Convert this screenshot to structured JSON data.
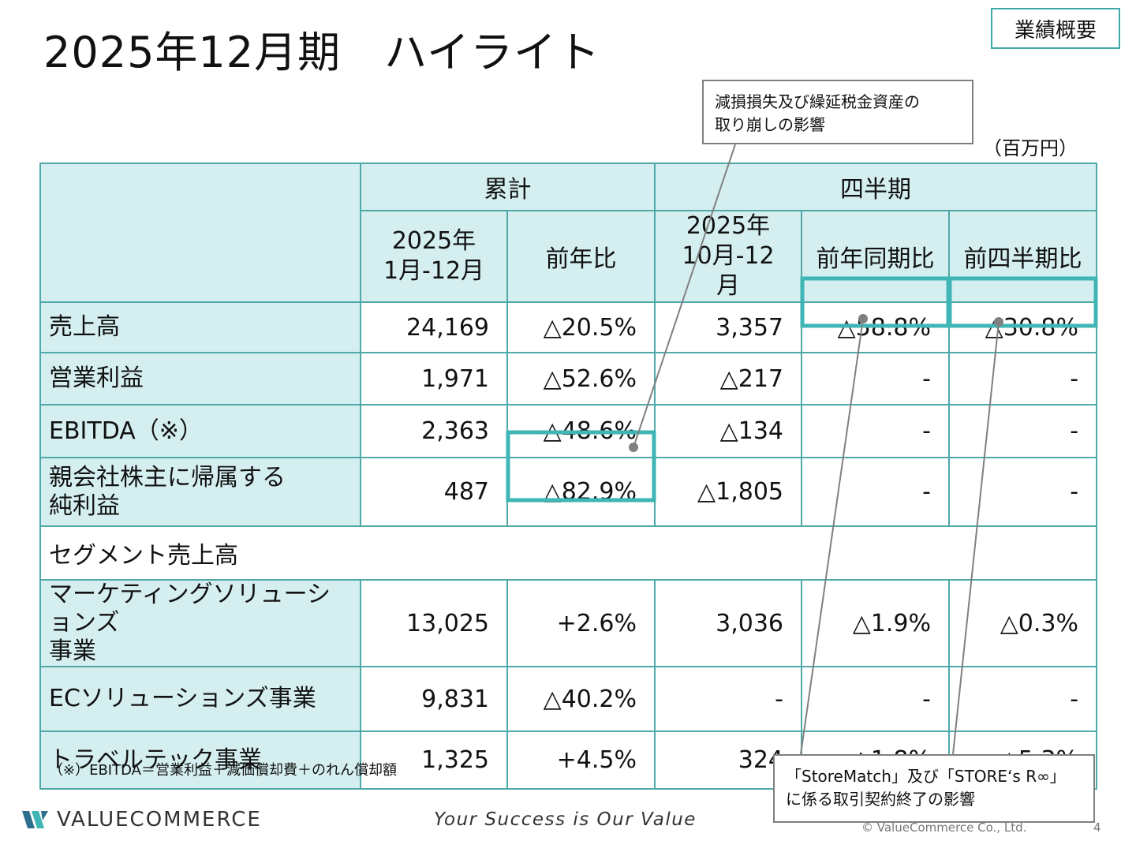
{
  "title": "2025年12月期　ハイライト",
  "badge": "業績概要",
  "unit": "（百万円）",
  "callout_impairment": [
    "減損損失及び繰延税金資産の",
    "取り崩しの影響"
  ],
  "callout_storematch": [
    "「StoreMatch」及び「STORE‘s R∞」",
    "に係る取引契約終了の影響"
  ],
  "table": {
    "group_cumulative": "累計",
    "group_quarter": "四半期",
    "col_cum_period": [
      "2025年",
      "1月-12月"
    ],
    "col_cum_yoy": "前年比",
    "col_q_period": [
      "2025年",
      "10月-12月"
    ],
    "col_q_yoy": "前年同期比",
    "col_q_qoq": "前四半期比",
    "rows": [
      {
        "label": [
          "売上高"
        ],
        "values": [
          "24,169",
          "△20.5%",
          "3,357",
          "△58.8%",
          "△30.8%"
        ]
      },
      {
        "label": [
          "営業利益"
        ],
        "values": [
          "1,971",
          "△52.6%",
          "△217",
          "-",
          "-"
        ]
      },
      {
        "label": [
          "EBITDA（※）"
        ],
        "values": [
          "2,363",
          "△48.6%",
          "△134",
          "-",
          "-"
        ]
      },
      {
        "label": [
          "親会社株主に帰属する",
          "純利益"
        ],
        "values": [
          "487",
          "△82.9%",
          "△1,805",
          "-",
          "-"
        ]
      }
    ],
    "segment_header": "セグメント売上高",
    "segment_rows": [
      {
        "label": [
          "マーケティングソリューションズ",
          "事業"
        ],
        "values": [
          "13,025",
          "+2.6%",
          "3,036",
          "△1.9%",
          "△0.3%"
        ]
      },
      {
        "label": [
          "ECソリューションズ事業"
        ],
        "values": [
          "9,831",
          "△40.2%",
          "-",
          "-",
          "-"
        ]
      },
      {
        "label": [
          "トラベルテック事業"
        ],
        "values": [
          "1,325",
          "+4.5%",
          "324",
          "+1.8%",
          "△5.3%"
        ]
      }
    ]
  },
  "footnote": "（※）EBITDA＝営業利益＋減価償却費＋のれん償却額",
  "logo_text": "VALUECOMMERCE",
  "tagline": "Your Success is Our Value",
  "copyright": "© ValueCommerce Co., Ltd.",
  "page_number": "4",
  "colors": {
    "table_border": "#4fa9a9",
    "header_fill": "#d5eff0",
    "highlight_border": "#3fb5b5",
    "callout_line": "#808080"
  }
}
